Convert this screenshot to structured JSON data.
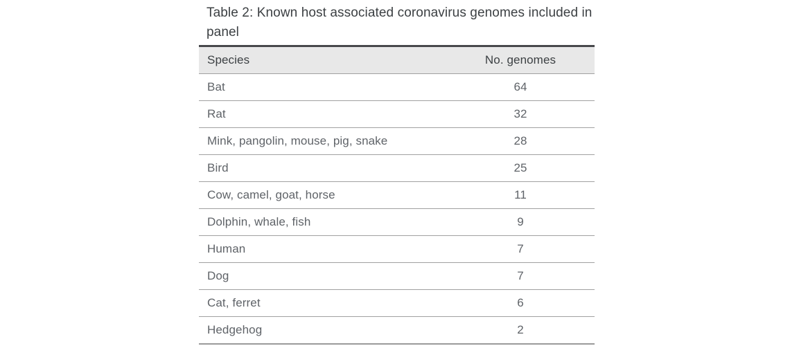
{
  "page_title": "Table 2: Known host associated coronavirus genomes included in panel",
  "chart_data": {
    "type": "table",
    "title": "Table 2: Known host associated coronavirus genomes included in panel",
    "columns": [
      "Species",
      "No. genomes"
    ],
    "rows": [
      [
        "Bat",
        64
      ],
      [
        "Rat",
        32
      ],
      [
        "Mink, pangolin, mouse, pig, snake",
        28
      ],
      [
        "Bird",
        25
      ],
      [
        "Cow, camel, goat, horse",
        11
      ],
      [
        "Dolphin, whale, fish",
        9
      ],
      [
        "Human",
        7
      ],
      [
        "Dog",
        7
      ],
      [
        "Cat, ferret",
        6
      ],
      [
        "Hedgehog",
        2
      ]
    ],
    "layout_hints": {
      "number_column_alignment": "center",
      "header_row_shaded": true,
      "grid": "horizontal-rules-only"
    }
  },
  "colors": {
    "title_text": "#3c4043",
    "header_text": "#3c4043",
    "cell_text": "#5f6368",
    "header_background": "#e8e8e8",
    "top_border": "#47484b",
    "bottom_border": "#9a9a9a",
    "row_border": "#a0a0a0"
  }
}
